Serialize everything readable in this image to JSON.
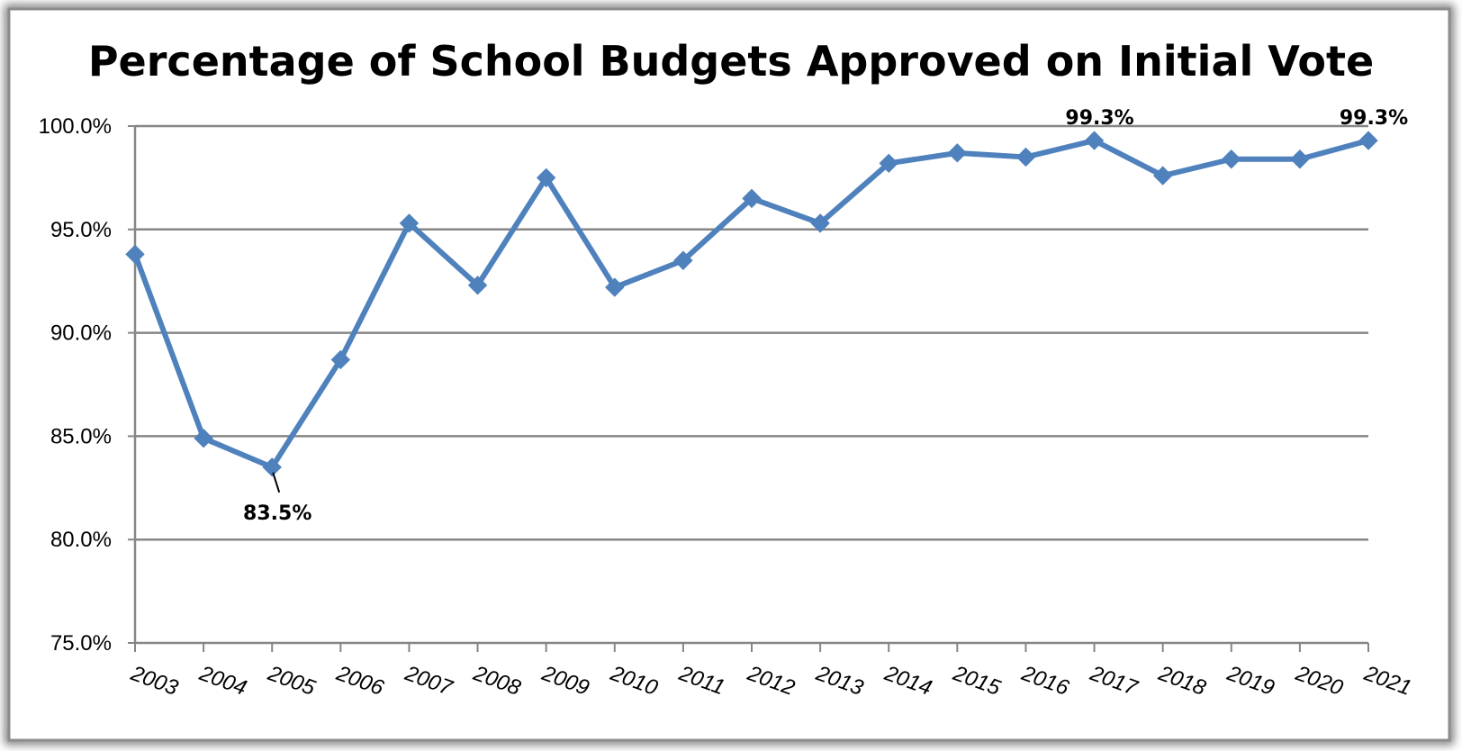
{
  "chart_data": {
    "type": "line",
    "title": "Percentage of School Budgets Approved on Initial Vote",
    "xlabel": "",
    "ylabel": "",
    "categories": [
      "2003",
      "2004",
      "2005",
      "2006",
      "2007",
      "2008",
      "2009",
      "2010",
      "2011",
      "2012",
      "2013",
      "2014",
      "2015",
      "2016",
      "2017",
      "2018",
      "2019",
      "2020",
      "2021"
    ],
    "series": [
      {
        "color": "#4F81BD",
        "values": [
          93.8,
          84.9,
          83.5,
          88.7,
          95.3,
          92.3,
          97.5,
          92.2,
          93.5,
          96.5,
          95.3,
          98.2,
          98.7,
          98.5,
          99.3,
          97.6,
          98.4,
          98.4,
          99.3
        ]
      }
    ],
    "ylim": [
      75.0,
      100.0
    ],
    "yticks": [
      75.0,
      80.0,
      85.0,
      90.0,
      95.0,
      100.0
    ],
    "ytick_labels": [
      "75.0%",
      "80.0%",
      "85.0%",
      "90.0%",
      "95.0%",
      "100.0%"
    ],
    "grid": true,
    "marker": "diamond",
    "data_labels": [
      {
        "category": "2005",
        "text": "83.5%",
        "placement": "below"
      },
      {
        "category": "2017",
        "text": "99.3%",
        "placement": "above"
      },
      {
        "category": "2021",
        "text": "99.3%",
        "placement": "above"
      }
    ]
  }
}
